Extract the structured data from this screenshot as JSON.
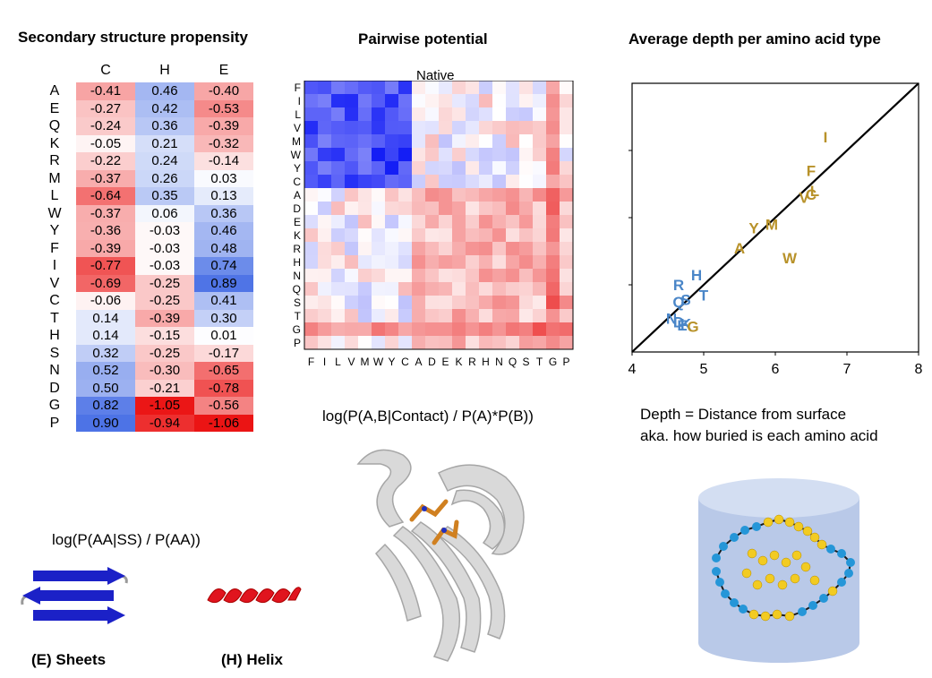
{
  "titles": {
    "secondary": "Secondary structure propensity",
    "pairwise": "Pairwise potential",
    "depth": "Average depth per amino acid type"
  },
  "secondary_structure": {
    "columns": [
      "C",
      "H",
      "E"
    ],
    "rows": [
      {
        "aa": "A",
        "values": [
          "-0.41",
          "0.46",
          "-0.40"
        ]
      },
      {
        "aa": "E",
        "values": [
          "-0.27",
          "0.42",
          "-0.53"
        ]
      },
      {
        "aa": "Q",
        "values": [
          "-0.24",
          "0.36",
          "-0.39"
        ]
      },
      {
        "aa": "K",
        "values": [
          "-0.05",
          "0.21",
          "-0.32"
        ]
      },
      {
        "aa": "R",
        "values": [
          "-0.22",
          "0.24",
          "-0.14"
        ]
      },
      {
        "aa": "M",
        "values": [
          "-0.37",
          "0.26",
          "0.03"
        ]
      },
      {
        "aa": "L",
        "values": [
          "-0.64",
          "0.35",
          "0.13"
        ]
      },
      {
        "aa": "W",
        "values": [
          "-0.37",
          "0.06",
          "0.36"
        ]
      },
      {
        "aa": "Y",
        "values": [
          "-0.36",
          "-0.03",
          "0.46"
        ]
      },
      {
        "aa": "F",
        "values": [
          "-0.39",
          "-0.03",
          "0.48"
        ]
      },
      {
        "aa": "I",
        "values": [
          "-0.77",
          "-0.03",
          "0.74"
        ]
      },
      {
        "aa": "V",
        "values": [
          "-0.69",
          "-0.25",
          "0.89"
        ]
      },
      {
        "aa": "C",
        "values": [
          "-0.06",
          "-0.25",
          "0.41"
        ]
      },
      {
        "aa": "T",
        "values": [
          "0.14",
          "-0.39",
          "0.30"
        ]
      },
      {
        "aa": "H",
        "values": [
          "0.14",
          "-0.15",
          "0.01"
        ]
      },
      {
        "aa": "S",
        "values": [
          "0.32",
          "-0.25",
          "-0.17"
        ]
      },
      {
        "aa": "N",
        "values": [
          "0.52",
          "-0.30",
          "-0.65"
        ]
      },
      {
        "aa": "D",
        "values": [
          "0.50",
          "-0.21",
          "-0.78"
        ]
      },
      {
        "aa": "G",
        "values": [
          "0.82",
          "-1.05",
          "-0.56"
        ]
      },
      {
        "aa": "P",
        "values": [
          "0.90",
          "-0.94",
          "-1.06"
        ]
      }
    ],
    "formula": "log(P(AA|SS) / P(AA))",
    "sheet_label": "(E) Sheets",
    "helix_label": "(H) Helix"
  },
  "pairwise": {
    "heatmap_title": "Native",
    "y_labels": [
      "F",
      "I",
      "L",
      "V",
      "M",
      "W",
      "Y",
      "C",
      "A",
      "D",
      "E",
      "K",
      "R",
      "H",
      "N",
      "Q",
      "S",
      "T",
      "G",
      "P"
    ],
    "x_labels": [
      "F",
      "I",
      "L",
      "V",
      "M",
      "W",
      "Y",
      "C",
      "A",
      "D",
      "E",
      "K",
      "R",
      "H",
      "N",
      "Q",
      "S",
      "T",
      "G",
      "P"
    ],
    "formula": "log(P(A,B|Contact) / P(A)*P(B))"
  },
  "depth": {
    "x_ticks": [
      "4",
      "5",
      "6",
      "7",
      "8"
    ],
    "caption_line1": "Depth = Distance from surface",
    "caption_line2": "aka. how buried is each amino acid",
    "colors": {
      "hydrophobic": "#b8922a",
      "polar": "#4a86c8"
    }
  },
  "chart_data": {
    "type": "scatter",
    "xlim": [
      4,
      8
    ],
    "ylim": [
      4,
      8
    ],
    "points": [
      {
        "label": "I",
        "x": 6.7,
        "y": 7.2,
        "group": "hydrophobic"
      },
      {
        "label": "F",
        "x": 6.5,
        "y": 6.7,
        "group": "hydrophobic"
      },
      {
        "label": "V",
        "x": 6.4,
        "y": 6.3,
        "group": "hydrophobic"
      },
      {
        "label": "C",
        "x": 6.5,
        "y": 6.35,
        "group": "hydrophobic"
      },
      {
        "label": "L",
        "x": 6.55,
        "y": 6.4,
        "group": "hydrophobic"
      },
      {
        "label": "M",
        "x": 5.95,
        "y": 5.9,
        "group": "hydrophobic"
      },
      {
        "label": "Y",
        "x": 5.7,
        "y": 5.85,
        "group": "hydrophobic"
      },
      {
        "label": "A",
        "x": 5.5,
        "y": 5.55,
        "group": "hydrophobic"
      },
      {
        "label": "W",
        "x": 6.2,
        "y": 5.4,
        "group": "hydrophobic"
      },
      {
        "label": "H",
        "x": 4.9,
        "y": 5.15,
        "group": "polar"
      },
      {
        "label": "R",
        "x": 4.65,
        "y": 5.0,
        "group": "polar"
      },
      {
        "label": "T",
        "x": 5.0,
        "y": 4.85,
        "group": "polar"
      },
      {
        "label": "S",
        "x": 4.75,
        "y": 4.78,
        "group": "polar"
      },
      {
        "label": "Q",
        "x": 4.65,
        "y": 4.75,
        "group": "polar"
      },
      {
        "label": "N",
        "x": 4.55,
        "y": 4.5,
        "group": "polar"
      },
      {
        "label": "D",
        "x": 4.65,
        "y": 4.45,
        "group": "polar"
      },
      {
        "label": "E",
        "x": 4.7,
        "y": 4.4,
        "group": "polar"
      },
      {
        "label": "K",
        "x": 4.75,
        "y": 4.42,
        "group": "polar"
      },
      {
        "label": "G",
        "x": 4.85,
        "y": 4.38,
        "group": "hydrophobic"
      }
    ]
  }
}
